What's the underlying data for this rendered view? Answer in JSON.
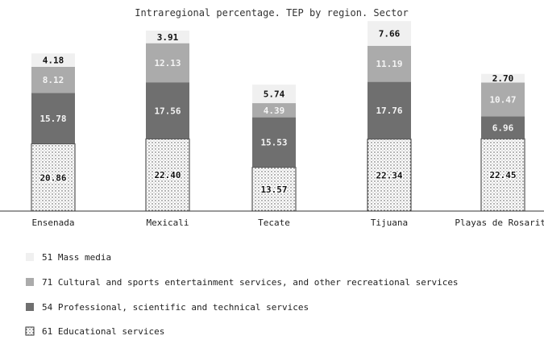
{
  "chart_data": {
    "type": "bar",
    "stacked": true,
    "title": "Intraregional percentage. TEP by region. Sector",
    "xlabel": "",
    "ylabel": "",
    "categories": [
      "Ensenada",
      "Mexicali",
      "Tecate",
      "Tijuana",
      "Playas de Rosarito"
    ],
    "series": [
      {
        "name": "61 Educational services",
        "values": [
          20.86,
          22.4,
          13.57,
          22.34,
          22.45
        ],
        "labels": [
          "20.86",
          "22.40",
          "13.57",
          "22.34",
          "22.45"
        ],
        "color": "#e0e0e0"
      },
      {
        "name": "54 Professional, scientific and technical services",
        "values": [
          15.78,
          17.56,
          15.53,
          17.76,
          6.96
        ],
        "labels": [
          "15.78",
          "17.56",
          "15.53",
          "17.76",
          "6.96"
        ],
        "color": "#6f6f6f"
      },
      {
        "name": "71 Cultural and sports entertainment services, and other recreational services",
        "values": [
          8.12,
          12.13,
          4.39,
          11.19,
          10.47
        ],
        "labels": [
          "8.12",
          "12.13",
          "4.39",
          "11.19",
          "10.47"
        ],
        "color": "#ababab"
      },
      {
        "name": "51 Mass media",
        "values": [
          4.18,
          3.91,
          5.74,
          7.66,
          2.7
        ],
        "labels": [
          "4.18",
          "3.91",
          "5.74",
          "7.66",
          "2.70"
        ],
        "color": "#f0f0f0"
      }
    ],
    "legend_order": [
      3,
      2,
      1,
      0
    ],
    "legend_position": "bottom-left",
    "grid": false
  },
  "colors": {
    "educational": "#e0e0e0",
    "professional": "#6f6f6f",
    "cultural": "#ababab",
    "mass_media": "#f0f0f0",
    "axis": "#333333"
  }
}
